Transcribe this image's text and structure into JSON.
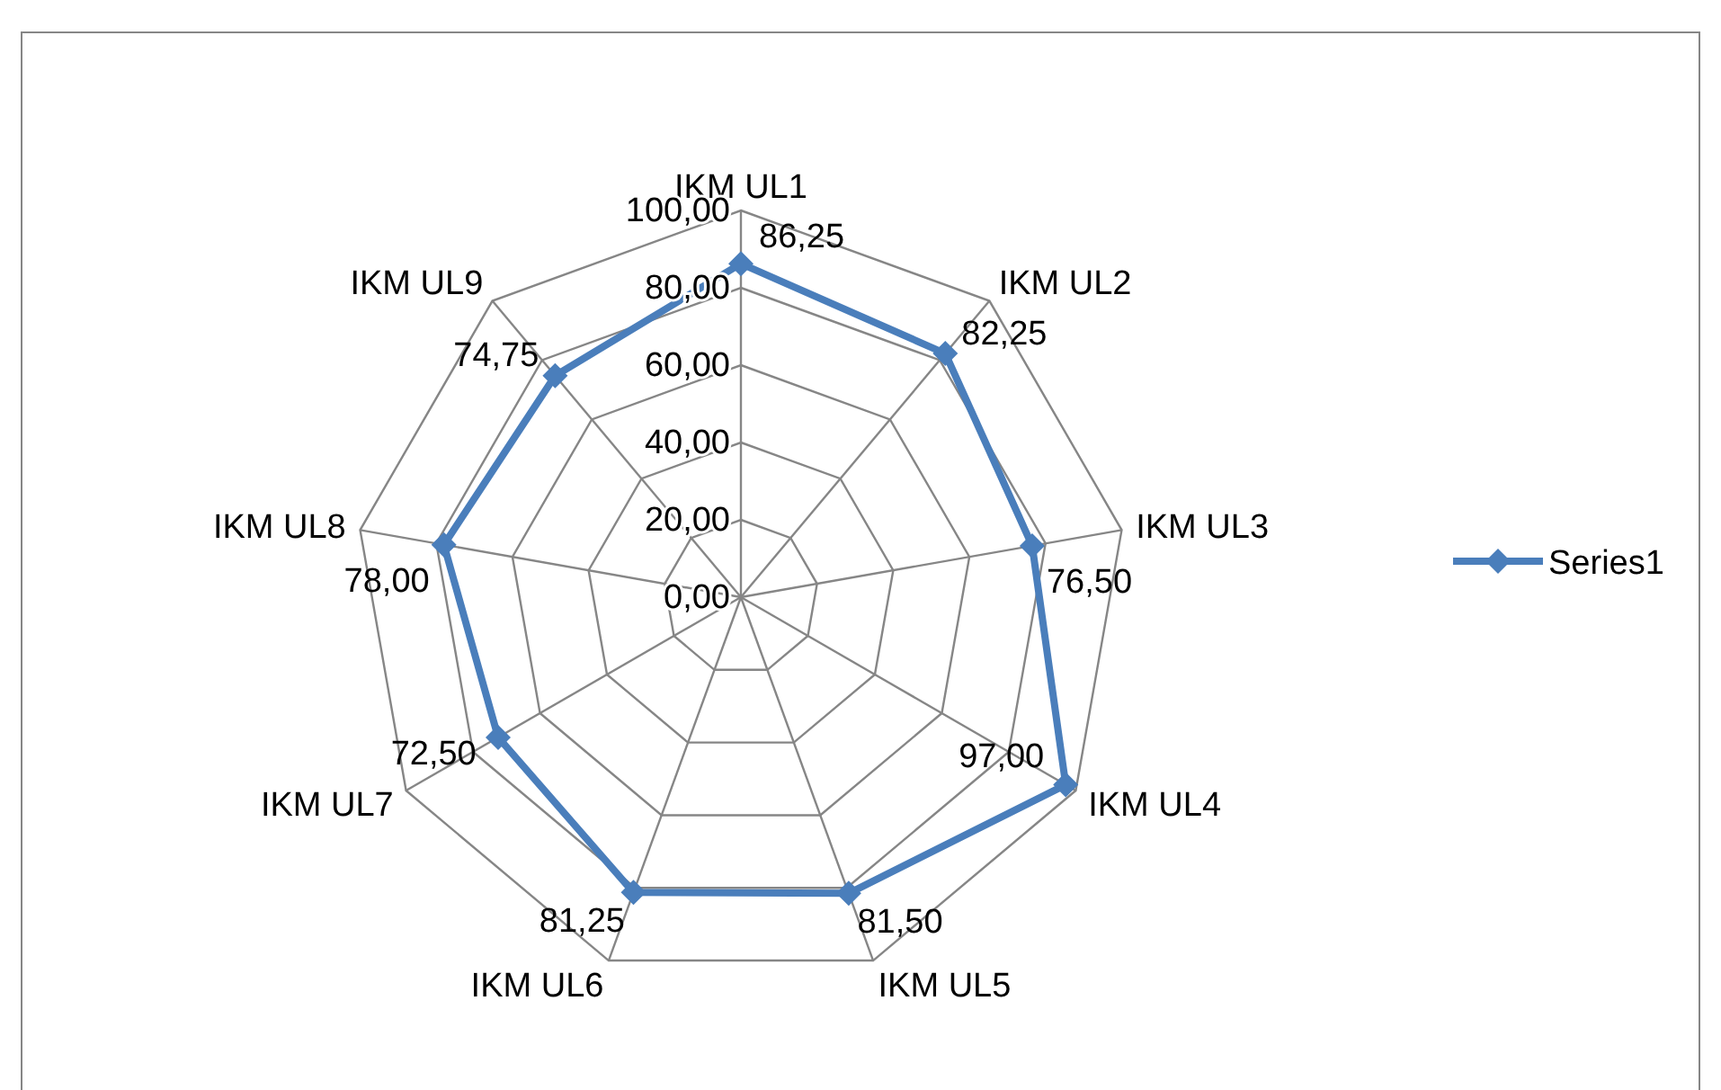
{
  "chart_data": {
    "type": "radar",
    "categories": [
      "IKM UL1",
      "IKM UL2",
      "IKM UL3",
      "IKM UL4",
      "IKM UL5",
      "IKM UL6",
      "IKM UL7",
      "IKM UL8",
      "IKM UL9"
    ],
    "series": [
      {
        "name": "Series1",
        "color": "#4a7ebb",
        "values": [
          86.25,
          82.25,
          76.5,
          97,
          81.5,
          81.25,
          72.5,
          78,
          74.75
        ],
        "value_labels": [
          "86,25",
          "82,25",
          "76,50",
          "97,00",
          "81,50",
          "81,25",
          "72,50",
          "78,00",
          "74,75"
        ]
      }
    ],
    "ylim": [
      0,
      100
    ],
    "yticks": [
      {
        "value": 0,
        "label": "0,00"
      },
      {
        "value": 20,
        "label": "20,00"
      },
      {
        "value": 40,
        "label": "40,00"
      },
      {
        "value": 60,
        "label": "60,00"
      },
      {
        "value": 80,
        "label": "80,00"
      },
      {
        "value": 100,
        "label": "100,00"
      }
    ],
    "grid": true,
    "legend": "right",
    "marker": "diamond",
    "line_style": "solid"
  }
}
